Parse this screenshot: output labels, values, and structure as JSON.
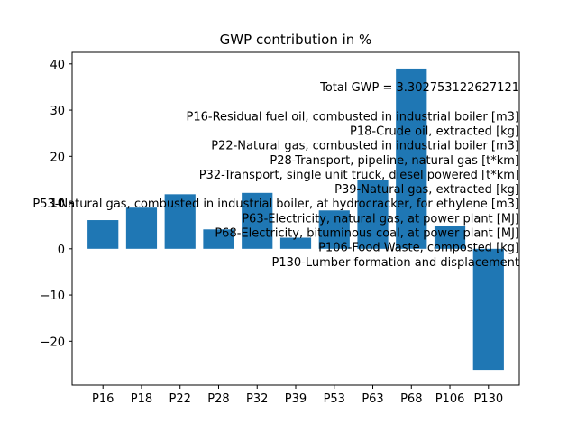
{
  "chart_data": {
    "type": "bar",
    "title": "GWP contribution in %",
    "xlabel": "",
    "ylabel": "",
    "categories": [
      "P16",
      "P18",
      "P22",
      "P28",
      "P32",
      "P39",
      "P53",
      "P63",
      "P68",
      "P106",
      "P130"
    ],
    "values": [
      6.2,
      8.9,
      11.8,
      4.2,
      12.1,
      2.4,
      8.3,
      14.8,
      39.0,
      5.0,
      -26.2
    ],
    "ylim": [
      -29.5,
      42.5
    ],
    "yticks": [
      -20,
      -10,
      0,
      10,
      20,
      30,
      40
    ],
    "ytick_labels": [
      "−20",
      "−10",
      "0",
      "10",
      "20",
      "30",
      "40"
    ],
    "bar_color": "#1f77b4",
    "grid": false,
    "annotations": [
      "Total GWP = 3.302753122627121",
      "",
      "P16-Residual fuel oil, combusted in industrial boiler [m3]",
      "P18-Crude oil, extracted [kg]",
      "P22-Natural gas, combusted in industrial boiler [m3]",
      "P28-Transport, pipeline, natural gas [t*km]",
      "P32-Transport, single unit truck, diesel powered [t*km]",
      "P39-Natural gas, extracted [kg]",
      "P53-Natural gas, combusted in industrial boiler, at hydrocracker, for ethylene [m3]",
      "P63-Electricity, natural gas, at power plant [MJ]",
      "P68-Electricity, bituminous coal, at power plant [MJ]",
      "P106-Food Waste, composted [kg]",
      "P130-Lumber formation and displacement"
    ]
  }
}
